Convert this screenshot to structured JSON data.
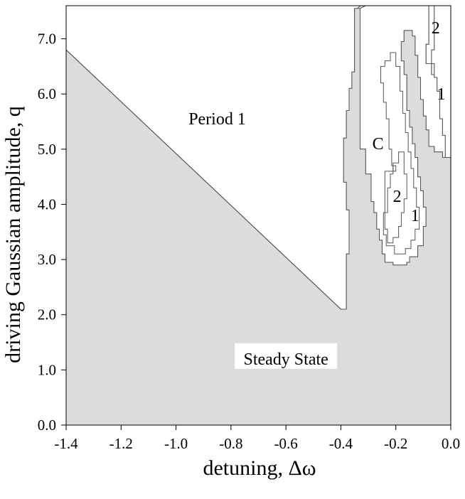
{
  "chart_data": {
    "type": "area",
    "xlabel": "detuning, Δω",
    "ylabel": "driving Gaussian amplitude, q",
    "xlim": [
      -1.4,
      0.0
    ],
    "ylim": [
      0.0,
      7.6
    ],
    "x_ticks": [
      "-1.4",
      "-1.2",
      "-1.0",
      "-0.8",
      "-0.6",
      "-0.4",
      "-0.2",
      "0.0"
    ],
    "y_ticks": [
      "0.0",
      "1.0",
      "2.0",
      "3.0",
      "4.0",
      "5.0",
      "6.0",
      "7.0"
    ],
    "fill_color": "#dcdcdc",
    "line_color": "#555555",
    "steady_state_boundary": [
      [
        -1.4,
        6.8
      ],
      [
        -0.4,
        2.1
      ],
      [
        -0.38,
        2.1
      ],
      [
        -0.38,
        3.1
      ],
      [
        -0.37,
        3.1
      ],
      [
        -0.37,
        3.9
      ],
      [
        -0.38,
        3.9
      ],
      [
        -0.38,
        4.4
      ],
      [
        -0.39,
        4.4
      ],
      [
        -0.39,
        5.2
      ],
      [
        -0.38,
        5.2
      ],
      [
        -0.38,
        5.7
      ],
      [
        -0.37,
        5.7
      ],
      [
        -0.37,
        6.1
      ],
      [
        -0.36,
        6.1
      ],
      [
        -0.36,
        6.4
      ],
      [
        -0.35,
        6.4
      ],
      [
        -0.35,
        7.1
      ],
      [
        -0.34,
        7.1
      ],
      [
        -0.34,
        7.6
      ],
      [
        0.0,
        7.6
      ],
      [
        0.0,
        4.85
      ],
      [
        -0.0,
        4.85
      ]
    ],
    "regions": [
      {
        "label": "Period 1",
        "boxed": false,
        "label_at": [
          -0.85,
          5.55
        ],
        "boundary": [
          [
            -1.4,
            6.8
          ],
          [
            -1.4,
            7.6
          ],
          [
            -0.33,
            7.6
          ],
          [
            -0.34,
            7.55
          ],
          [
            -0.35,
            7.55
          ],
          [
            -0.35,
            6.4
          ],
          [
            -0.36,
            6.4
          ],
          [
            -0.36,
            6.1
          ],
          [
            -0.37,
            6.1
          ],
          [
            -0.37,
            5.7
          ],
          [
            -0.38,
            5.7
          ],
          [
            -0.38,
            5.2
          ],
          [
            -0.39,
            5.2
          ],
          [
            -0.39,
            4.4
          ],
          [
            -0.38,
            4.4
          ],
          [
            -0.38,
            3.9
          ],
          [
            -0.37,
            3.9
          ],
          [
            -0.37,
            3.1
          ],
          [
            -0.38,
            3.1
          ],
          [
            -0.38,
            2.1
          ],
          [
            -0.4,
            2.1
          ]
        ]
      },
      {
        "label": "C",
        "boxed": false,
        "label_at": [
          -0.265,
          5.1
        ],
        "boundary": [
          [
            -0.31,
            7.6
          ],
          [
            -0.33,
            7.55
          ],
          [
            -0.33,
            5.0
          ],
          [
            -0.31,
            5.0
          ],
          [
            -0.31,
            4.55
          ],
          [
            -0.29,
            4.55
          ],
          [
            -0.29,
            4.05
          ],
          [
            -0.28,
            4.05
          ],
          [
            -0.28,
            3.85
          ],
          [
            -0.27,
            3.85
          ],
          [
            -0.27,
            3.55
          ],
          [
            -0.26,
            3.55
          ],
          [
            -0.26,
            3.35
          ],
          [
            -0.25,
            3.35
          ],
          [
            -0.25,
            3.1
          ],
          [
            -0.24,
            3.1
          ],
          [
            -0.24,
            2.95
          ],
          [
            -0.21,
            2.95
          ],
          [
            -0.21,
            2.9
          ],
          [
            -0.16,
            2.9
          ],
          [
            -0.16,
            2.95
          ],
          [
            -0.15,
            2.95
          ],
          [
            -0.15,
            3.05
          ],
          [
            -0.12,
            3.05
          ],
          [
            -0.12,
            3.25
          ],
          [
            -0.1,
            3.25
          ],
          [
            -0.1,
            3.6
          ],
          [
            -0.09,
            3.6
          ],
          [
            -0.09,
            3.95
          ],
          [
            -0.1,
            3.95
          ],
          [
            -0.1,
            4.25
          ],
          [
            -0.11,
            4.25
          ],
          [
            -0.11,
            4.5
          ],
          [
            -0.12,
            4.5
          ],
          [
            -0.12,
            4.85
          ],
          [
            -0.13,
            4.85
          ],
          [
            -0.13,
            5.1
          ],
          [
            -0.14,
            5.1
          ],
          [
            -0.14,
            5.4
          ],
          [
            -0.15,
            5.4
          ],
          [
            -0.15,
            5.7
          ],
          [
            -0.16,
            5.7
          ],
          [
            -0.16,
            6.35
          ],
          [
            -0.17,
            6.35
          ],
          [
            -0.17,
            6.6
          ],
          [
            -0.18,
            6.6
          ],
          [
            -0.18,
            6.95
          ],
          [
            -0.17,
            6.95
          ],
          [
            -0.17,
            7.15
          ],
          [
            -0.14,
            7.15
          ],
          [
            -0.14,
            7.05
          ],
          [
            -0.13,
            7.05
          ],
          [
            -0.13,
            6.7
          ],
          [
            -0.12,
            6.7
          ],
          [
            -0.12,
            6.3
          ],
          [
            -0.11,
            6.3
          ],
          [
            -0.11,
            5.9
          ],
          [
            -0.1,
            5.9
          ],
          [
            -0.1,
            5.6
          ],
          [
            -0.09,
            5.6
          ],
          [
            -0.09,
            5.35
          ],
          [
            -0.08,
            5.35
          ],
          [
            -0.08,
            5.05
          ],
          [
            -0.06,
            5.05
          ],
          [
            -0.06,
            4.95
          ],
          [
            -0.03,
            4.95
          ],
          [
            -0.03,
            4.85
          ],
          [
            0.0,
            4.85
          ],
          [
            0.0,
            7.6
          ]
        ]
      },
      {
        "label": "2",
        "boxed": false,
        "label_at": [
          -0.055,
          7.2
        ],
        "boundary": [
          [
            -0.08,
            7.6
          ],
          [
            -0.08,
            6.9
          ],
          [
            -0.09,
            6.9
          ],
          [
            -0.09,
            6.55
          ],
          [
            -0.07,
            6.55
          ],
          [
            -0.07,
            6.35
          ],
          [
            -0.05,
            6.35
          ],
          [
            -0.05,
            6.6
          ],
          [
            -0.04,
            6.6
          ],
          [
            -0.04,
            7.6
          ]
        ]
      },
      {
        "label": "1",
        "boxed": false,
        "label_at": [
          -0.035,
          6.0
        ],
        "boundary": [
          [
            -0.06,
            7.6
          ],
          [
            -0.06,
            6.8
          ],
          [
            -0.07,
            6.8
          ],
          [
            -0.07,
            6.55
          ],
          [
            -0.06,
            6.55
          ],
          [
            -0.06,
            6.3
          ],
          [
            -0.05,
            6.3
          ],
          [
            -0.05,
            6.05
          ],
          [
            -0.04,
            6.05
          ],
          [
            -0.04,
            5.55
          ],
          [
            -0.03,
            5.55
          ],
          [
            -0.03,
            5.25
          ],
          [
            -0.02,
            5.25
          ],
          [
            -0.02,
            4.85
          ],
          [
            0.0,
            4.85
          ],
          [
            0.0,
            7.6
          ]
        ]
      },
      {
        "label": "2",
        "boxed": false,
        "label_at": [
          -0.195,
          4.15
        ],
        "boundary": [
          [
            -0.22,
            3.3
          ],
          [
            -0.23,
            3.3
          ],
          [
            -0.23,
            3.55
          ],
          [
            -0.24,
            3.55
          ],
          [
            -0.24,
            3.85
          ],
          [
            -0.23,
            3.85
          ],
          [
            -0.23,
            4.3
          ],
          [
            -0.22,
            4.3
          ],
          [
            -0.22,
            4.55
          ],
          [
            -0.21,
            4.55
          ],
          [
            -0.21,
            4.75
          ],
          [
            -0.19,
            4.75
          ],
          [
            -0.19,
            4.95
          ],
          [
            -0.17,
            4.95
          ],
          [
            -0.17,
            4.55
          ],
          [
            -0.16,
            4.55
          ],
          [
            -0.16,
            4.1
          ],
          [
            -0.17,
            4.1
          ],
          [
            -0.17,
            3.85
          ],
          [
            -0.18,
            3.85
          ],
          [
            -0.18,
            3.6
          ],
          [
            -0.19,
            3.6
          ],
          [
            -0.19,
            3.4
          ],
          [
            -0.21,
            3.4
          ],
          [
            -0.21,
            3.3
          ]
        ]
      },
      {
        "label": "1",
        "boxed": false,
        "label_at": [
          -0.13,
          3.8
        ]
      },
      {
        "label": "Steady State",
        "boxed": true,
        "label_at": [
          -0.6,
          1.2
        ]
      }
    ]
  }
}
